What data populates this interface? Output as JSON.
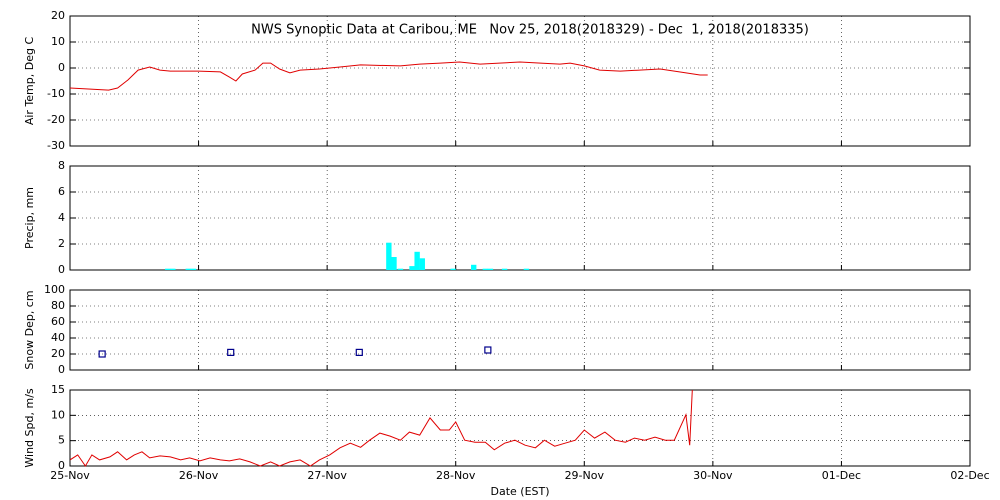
{
  "chart_data": [
    {
      "type": "line",
      "title": "NWS Synoptic Data at Caribou, ME   Nov 25, 2018(2018329) - Dec  1, 2018(2018335)",
      "ylabel": "Air Temp, Deg C",
      "color": "#e00000",
      "grid": true,
      "ylim": [
        -30,
        20
      ],
      "yticks": [
        -30,
        -20,
        -10,
        0,
        10,
        20
      ],
      "x": [
        0,
        0.16,
        0.3,
        0.37,
        0.45,
        0.53,
        0.62,
        0.7,
        0.78,
        1.0,
        1.17,
        1.24,
        1.29,
        1.34,
        1.44,
        1.5,
        1.56,
        1.63,
        1.71,
        1.79,
        1.94,
        2.1,
        2.26,
        2.57,
        2.72,
        2.88,
        3.03,
        3.19,
        3.34,
        3.5,
        3.66,
        3.81,
        3.89,
        4.0,
        4.12,
        4.28,
        4.43,
        4.59,
        4.74,
        4.9,
        4.96
      ],
      "values": [
        -7.7,
        -8.1,
        -8.5,
        -7.7,
        -4.6,
        -0.8,
        0.4,
        -0.8,
        -1.2,
        -1.2,
        -1.5,
        -3.5,
        -5,
        -2.3,
        -0.8,
        1.9,
        1.9,
        -0.4,
        -1.9,
        -0.8,
        -0.4,
        0.4,
        1.2,
        0.8,
        1.5,
        1.9,
        2.3,
        1.5,
        1.9,
        2.3,
        1.9,
        1.5,
        1.9,
        0.8,
        -0.8,
        -1.2,
        -0.8,
        -0.4,
        -1.5,
        -2.7,
        -2.7
      ]
    },
    {
      "type": "bar",
      "ylabel": "Precip, mm",
      "color": "#00ffff",
      "grid": true,
      "ylim": [
        0,
        8
      ],
      "yticks": [
        0,
        2,
        4,
        6,
        8
      ],
      "x": [
        0.76,
        0.8,
        0.92,
        0.96,
        2.48,
        2.52,
        2.57,
        2.66,
        2.7,
        2.74,
        2.98,
        3.14,
        3.23,
        3.27,
        3.38,
        3.55
      ],
      "values": [
        0.1,
        0.1,
        0.1,
        0.1,
        2.1,
        1.0,
        0.1,
        0.3,
        1.4,
        0.9,
        0.1,
        0.4,
        0.1,
        0.1,
        0.1,
        0.1
      ]
    },
    {
      "type": "scatter",
      "ylabel": "Snow Dep, cm",
      "color": "#00008b",
      "grid": true,
      "ylim": [
        0,
        100
      ],
      "yticks": [
        0,
        20,
        40,
        60,
        80,
        100
      ],
      "x": [
        0.25,
        1.25,
        2.25,
        3.25
      ],
      "values": [
        20,
        22,
        22,
        25
      ]
    },
    {
      "type": "line",
      "ylabel": "Wind Spd, m/s",
      "xlabel": "Date (EST)",
      "color": "#e00000",
      "grid": true,
      "ylim": [
        0,
        15
      ],
      "yticks": [
        0,
        5,
        10,
        15
      ],
      "xlim": [
        0,
        7
      ],
      "xticks": [
        {
          "value": 0,
          "label": "25-Nov"
        },
        {
          "value": 1,
          "label": "26-Nov"
        },
        {
          "value": 2,
          "label": "27-Nov"
        },
        {
          "value": 3,
          "label": "28-Nov"
        },
        {
          "value": 4,
          "label": "29-Nov"
        },
        {
          "value": 5,
          "label": "30-Nov"
        },
        {
          "value": 6,
          "label": "01-Dec"
        },
        {
          "value": 7,
          "label": "02-Dec"
        }
      ],
      "x": [
        0,
        0.06,
        0.12,
        0.17,
        0.23,
        0.31,
        0.37,
        0.44,
        0.5,
        0.56,
        0.62,
        0.7,
        0.78,
        0.86,
        0.93,
        1.01,
        1.09,
        1.17,
        1.24,
        1.32,
        1.4,
        1.48,
        1.56,
        1.63,
        1.71,
        1.79,
        1.87,
        1.94,
        2.02,
        2.1,
        2.18,
        2.26,
        2.33,
        2.41,
        2.49,
        2.57,
        2.64,
        2.72,
        2.8,
        2.88,
        2.95,
        3.0,
        3.07,
        3.15,
        3.23,
        3.3,
        3.38,
        3.46,
        3.54,
        3.62,
        3.69,
        3.77,
        3.85,
        3.93,
        4.0,
        4.08,
        4.16,
        4.24,
        4.32,
        4.39,
        4.47,
        4.55,
        4.63,
        4.7,
        4.79,
        4.82,
        4.84
      ],
      "values": [
        1.2,
        2.2,
        0,
        2.2,
        1.2,
        1.8,
        2.8,
        1.2,
        2.2,
        2.8,
        1.6,
        2.0,
        1.8,
        1.2,
        1.6,
        1.0,
        1.6,
        1.2,
        1.0,
        1.4,
        0.8,
        0,
        0.8,
        0,
        0.8,
        1.2,
        0,
        1.2,
        2.2,
        3.6,
        4.5,
        3.7,
        5.1,
        6.5,
        5.9,
        5.1,
        6.7,
        6.1,
        9.5,
        7.1,
        7.1,
        8.7,
        5.1,
        4.7,
        4.7,
        3.2,
        4.5,
        5.1,
        4.1,
        3.6,
        5.1,
        3.9,
        4.5,
        5.1,
        7.1,
        5.5,
        6.7,
        5.1,
        4.7,
        5.5,
        5.1,
        5.7,
        5.1,
        5.1,
        10.1,
        4.1,
        15
      ]
    }
  ]
}
